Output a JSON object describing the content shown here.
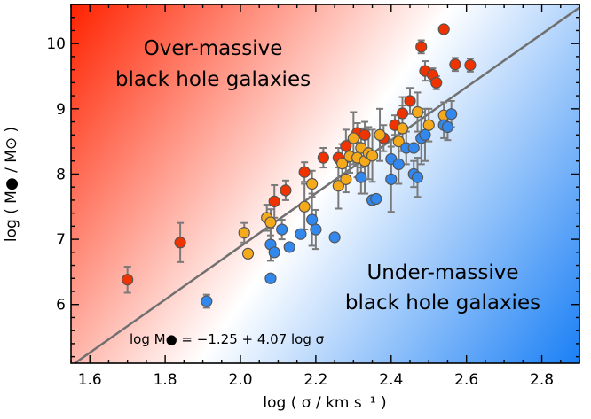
{
  "chart_data": {
    "type": "scatter",
    "title": "",
    "xlabel": "log ( σ / km s⁻¹ )",
    "ylabel": "log ( M● / M⊙ )",
    "xlim": [
      1.55,
      2.9
    ],
    "ylim": [
      5.1,
      10.6
    ],
    "x_ticks": [
      1.6,
      1.8,
      2.0,
      2.2,
      2.4,
      2.6,
      2.8
    ],
    "x_tick_labels": [
      "1.6",
      "1.8",
      "2.0",
      "2.2",
      "2.4",
      "2.6",
      "2.8"
    ],
    "y_ticks": [
      6,
      7,
      8,
      9,
      10
    ],
    "y_tick_labels": [
      "6",
      "7",
      "8",
      "9",
      "10"
    ],
    "grid": false,
    "background": "diagonal gradient: red (top-left) to white to blue (bottom-right)",
    "annotations": {
      "over": [
        "Over-massive",
        "black hole galaxies"
      ],
      "under": [
        "Under-massive",
        "black hole galaxies"
      ],
      "relation": "log M● = −1.25 + 4.07 log σ"
    },
    "relation": {
      "intercept": -1.25,
      "slope": 4.07
    },
    "colors": {
      "red": "#ee3300",
      "orange": "#f5aa1c",
      "blue": "#3388ee",
      "line": "#707070",
      "errorbar": "#7a7a7a",
      "bg_red": "#ff2200",
      "bg_blue": "#1a7ff5"
    },
    "series": [
      {
        "color": "red",
        "points": [
          {
            "x": 1.7,
            "y": 6.38,
            "err": 0.2
          },
          {
            "x": 1.84,
            "y": 6.95,
            "err": 0.3
          },
          {
            "x": 2.09,
            "y": 7.58,
            "err": 0.25
          },
          {
            "x": 2.12,
            "y": 7.75,
            "err": 0.15
          },
          {
            "x": 2.17,
            "y": 8.03,
            "err": 0.15
          },
          {
            "x": 2.22,
            "y": 8.25,
            "err": 0.15
          },
          {
            "x": 2.26,
            "y": 8.25,
            "err": 0.15
          },
          {
            "x": 2.28,
            "y": 8.43,
            "err": 0.25
          },
          {
            "x": 2.31,
            "y": 8.63,
            "err": 0.15
          },
          {
            "x": 2.33,
            "y": 8.6,
            "err": 0.2
          },
          {
            "x": 2.38,
            "y": 8.55,
            "err": 0.2
          },
          {
            "x": 2.41,
            "y": 8.75,
            "err": 0.15
          },
          {
            "x": 2.43,
            "y": 8.93,
            "err": 0.25
          },
          {
            "x": 2.45,
            "y": 9.12,
            "err": 0.2
          },
          {
            "x": 2.48,
            "y": 9.95,
            "err": 0.1
          },
          {
            "x": 2.49,
            "y": 9.58,
            "err": 0.15
          },
          {
            "x": 2.51,
            "y": 9.52,
            "err": 0.1
          },
          {
            "x": 2.52,
            "y": 9.4,
            "err": 0.1
          },
          {
            "x": 2.54,
            "y": 10.22,
            "err": 0.0
          },
          {
            "x": 2.57,
            "y": 9.68,
            "err": 0.1
          },
          {
            "x": 2.61,
            "y": 9.67,
            "err": 0.1
          }
        ]
      },
      {
        "color": "orange",
        "points": [
          {
            "x": 2.01,
            "y": 7.1,
            "err": 0.15
          },
          {
            "x": 2.02,
            "y": 6.78,
            "err": 0.0
          },
          {
            "x": 2.07,
            "y": 7.33,
            "err": 0.2
          },
          {
            "x": 2.08,
            "y": 7.26,
            "err": 0.2
          },
          {
            "x": 2.17,
            "y": 7.5,
            "err": 0.35
          },
          {
            "x": 2.19,
            "y": 7.85,
            "err": 0.2
          },
          {
            "x": 2.26,
            "y": 7.82,
            "err": 0.35
          },
          {
            "x": 2.27,
            "y": 8.16,
            "err": 0.3
          },
          {
            "x": 2.28,
            "y": 7.92,
            "err": 0.2
          },
          {
            "x": 2.29,
            "y": 8.27,
            "err": 0.25
          },
          {
            "x": 2.3,
            "y": 8.55,
            "err": 0.4
          },
          {
            "x": 2.31,
            "y": 8.25,
            "err": 0.3
          },
          {
            "x": 2.32,
            "y": 8.4,
            "err": 0.3
          },
          {
            "x": 2.33,
            "y": 8.2,
            "err": 0.5
          },
          {
            "x": 2.34,
            "y": 8.32,
            "err": 0.4
          },
          {
            "x": 2.35,
            "y": 8.28,
            "err": 0.4
          },
          {
            "x": 2.37,
            "y": 8.6,
            "err": 0.4
          },
          {
            "x": 2.42,
            "y": 8.5,
            "err": 0.4
          },
          {
            "x": 2.43,
            "y": 8.7,
            "err": 0.35
          },
          {
            "x": 2.47,
            "y": 8.95,
            "err": 0.3
          },
          {
            "x": 2.5,
            "y": 8.75,
            "err": 0.25
          },
          {
            "x": 2.54,
            "y": 8.9,
            "err": 0.2
          }
        ]
      },
      {
        "color": "blue",
        "points": [
          {
            "x": 1.91,
            "y": 6.05,
            "err": 0.1
          },
          {
            "x": 2.08,
            "y": 6.92,
            "err": 0.25
          },
          {
            "x": 2.08,
            "y": 6.4,
            "err": 0.0
          },
          {
            "x": 2.09,
            "y": 6.8,
            "err": 0.0
          },
          {
            "x": 2.11,
            "y": 7.15,
            "err": 0.15
          },
          {
            "x": 2.13,
            "y": 6.88,
            "err": 0.0
          },
          {
            "x": 2.16,
            "y": 7.08,
            "err": 0.0
          },
          {
            "x": 2.19,
            "y": 7.3,
            "err": 0.4
          },
          {
            "x": 2.2,
            "y": 7.15,
            "err": 0.3
          },
          {
            "x": 2.25,
            "y": 7.03,
            "err": 0.0
          },
          {
            "x": 2.32,
            "y": 7.95,
            "err": 0.25
          },
          {
            "x": 2.35,
            "y": 7.6,
            "err": 0.0
          },
          {
            "x": 2.36,
            "y": 7.62,
            "err": 0.0
          },
          {
            "x": 2.4,
            "y": 8.23,
            "err": 0.3
          },
          {
            "x": 2.4,
            "y": 7.92,
            "err": 0.5
          },
          {
            "x": 2.42,
            "y": 8.15,
            "err": 0.3
          },
          {
            "x": 2.44,
            "y": 8.4,
            "err": 0.25
          },
          {
            "x": 2.46,
            "y": 8.4,
            "err": 0.0
          },
          {
            "x": 2.46,
            "y": 8.0,
            "err": 0.2
          },
          {
            "x": 2.47,
            "y": 7.95,
            "err": 0.3
          },
          {
            "x": 2.48,
            "y": 8.55,
            "err": 0.4
          },
          {
            "x": 2.49,
            "y": 8.6,
            "err": 0.4
          },
          {
            "x": 2.54,
            "y": 8.75,
            "err": 0.2
          },
          {
            "x": 2.55,
            "y": 8.72,
            "err": 0.2
          },
          {
            "x": 2.56,
            "y": 8.92,
            "err": 0.2
          }
        ]
      }
    ]
  }
}
